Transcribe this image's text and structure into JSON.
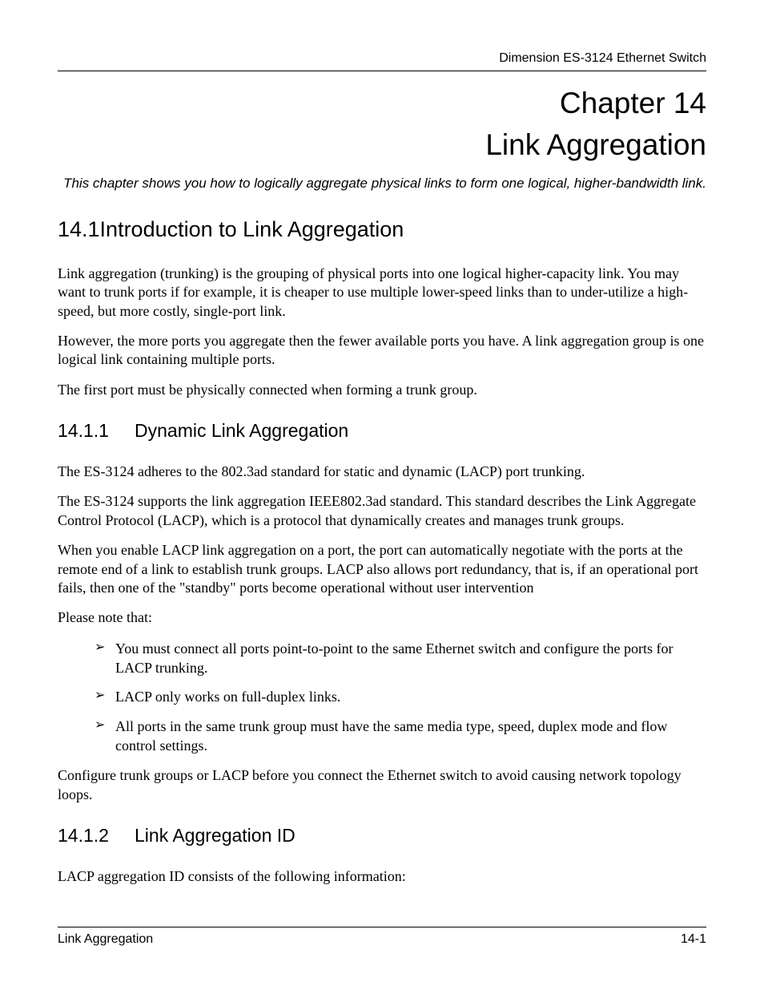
{
  "header": {
    "running_title": "Dimension ES-3124 Ethernet Switch"
  },
  "chapter": {
    "number_line": "Chapter 14",
    "title_line": "Link Aggregation",
    "intro": "This chapter shows you how to logically aggregate physical links to form one logical, higher-bandwidth link."
  },
  "section_14_1": {
    "heading": "14.1Introduction to Link Aggregation",
    "p1": "Link aggregation (trunking) is the grouping of physical ports into one logical higher-capacity link. You may want to trunk ports if for example, it is cheaper to use multiple lower-speed links than to under-utilize a high-speed, but more costly, single-port link.",
    "p2": "However, the more ports you aggregate then the fewer available ports you have. A link aggregation group is one logical link containing multiple ports.",
    "p3": "The first port must be physically connected when forming a trunk group."
  },
  "section_14_1_1": {
    "number": "14.1.1",
    "title": "Dynamic Link Aggregation",
    "p1": "The ES-3124 adheres to the 802.3ad standard for static and dynamic (LACP) port trunking.",
    "p2": "The ES-3124 supports the link aggregation IEEE802.3ad standard. This standard describes the Link Aggregate Control Protocol (LACP), which is a protocol that dynamically creates and manages trunk groups.",
    "p3": "When you enable LACP link aggregation on a port, the port can automatically negotiate with the ports at the remote end of a link to establish trunk groups. LACP also allows port redundancy, that is, if an operational port fails, then one of the \"standby\" ports become operational without user intervention",
    "p4": "Please note that:",
    "bullets": [
      "You must connect all ports point-to-point to the same Ethernet switch and configure the ports for LACP trunking.",
      "LACP only works on full-duplex links.",
      "All ports in the same trunk group must have the same media type, speed, duplex mode and flow control settings."
    ],
    "p5": "Configure trunk groups or LACP before you connect the Ethernet switch to avoid causing network topology loops."
  },
  "section_14_1_2": {
    "number": "14.1.2",
    "title": "Link Aggregation ID",
    "p1": "LACP aggregation ID consists of the following information:"
  },
  "footer": {
    "left": "Link Aggregation",
    "right": "14-1"
  }
}
